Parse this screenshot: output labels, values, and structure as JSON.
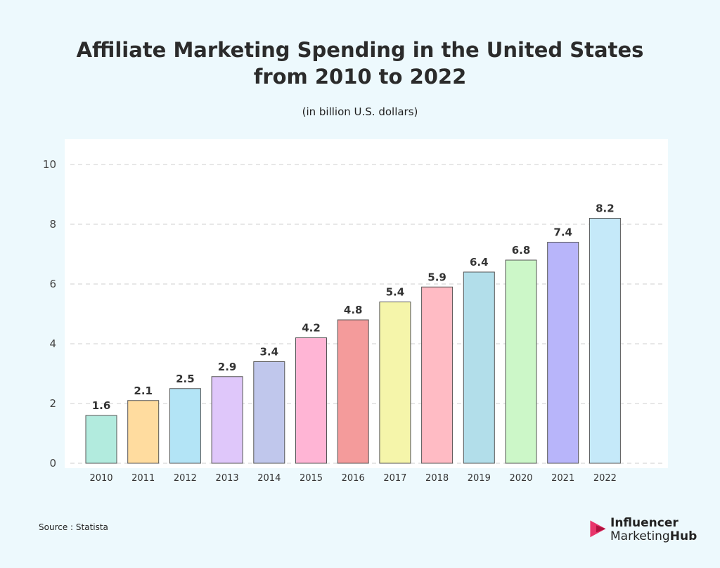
{
  "title_line1": "Affiliate Marketing Spending in the United States",
  "title_line2": "from 2010 to 2022",
  "subtitle": "(in billion U.S. dollars)",
  "source": "Source : Statista",
  "logo": {
    "line1": "Influencer",
    "line2a": "Marketing",
    "line2b": "Hub",
    "icon": "influencer-marketing-hub-logo-icon",
    "accent": "#e8356b"
  },
  "chart_data": {
    "type": "bar",
    "categories": [
      "2010",
      "2011",
      "2012",
      "2013",
      "2014",
      "2015",
      "2016",
      "2017",
      "2018",
      "2019",
      "2020",
      "2021",
      "2022"
    ],
    "values": [
      1.6,
      2.1,
      2.5,
      2.9,
      3.4,
      4.2,
      4.8,
      5.4,
      5.9,
      6.4,
      6.8,
      7.4,
      8.2
    ],
    "labels": [
      "1.6",
      "2.1",
      "2.5",
      "2.9",
      "3.4",
      "4.2",
      "4.8",
      "5.4",
      "5.9",
      "6.4",
      "6.8",
      "7.4",
      "8.2"
    ],
    "bar_colors": [
      "#b2ebde",
      "#ffdc9f",
      "#b3e4f6",
      "#dfc7fa",
      "#c0c7ec",
      "#ffb5d5",
      "#f49b9b",
      "#f5f5aa",
      "#ffbbc4",
      "#b2deea",
      "#ccf7c8",
      "#b8b5fa",
      "#c5e9f9"
    ],
    "ylim": [
      0,
      10
    ],
    "yticks": [
      0,
      2,
      4,
      6,
      8,
      10
    ],
    "title": "Affiliate Marketing Spending in the United States from 2010 to 2022",
    "xlabel": "",
    "ylabel": "",
    "grid": true,
    "legend": "none"
  }
}
